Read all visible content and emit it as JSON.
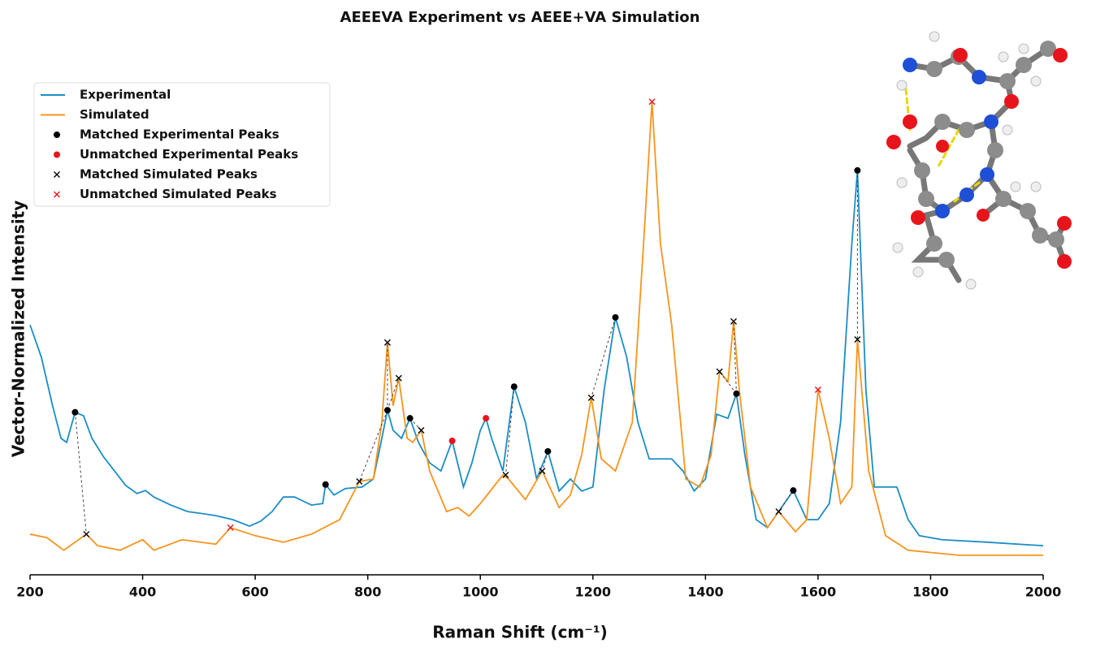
{
  "chart_data": {
    "type": "line",
    "title": "AEEEVA Experiment vs AEEE+VA Simulation",
    "xlabel": "Raman Shift (cm⁻¹)",
    "ylabel": "Vector-Normalized Intensity",
    "xlim": [
      200,
      2000
    ],
    "xticks": [
      200,
      400,
      600,
      800,
      1000,
      1200,
      1400,
      1600,
      1800,
      2000
    ],
    "ylim": [
      0,
      1
    ],
    "legend": "upper left",
    "grid": false,
    "series": [
      {
        "name": "Experimental",
        "color": "#1b8dc6",
        "marker": "line",
        "x": [
          200,
          220,
          240,
          255,
          265,
          280,
          295,
          310,
          330,
          350,
          370,
          390,
          405,
          420,
          450,
          480,
          500,
          530,
          560,
          590,
          610,
          630,
          650,
          670,
          700,
          720,
          725,
          740,
          760,
          790,
          810,
          825,
          835,
          845,
          860,
          875,
          890,
          910,
          930,
          950,
          970,
          985,
          1000,
          1010,
          1020,
          1040,
          1060,
          1080,
          1100,
          1120,
          1140,
          1160,
          1180,
          1200,
          1220,
          1240,
          1260,
          1280,
          1300,
          1340,
          1360,
          1380,
          1400,
          1420,
          1440,
          1455,
          1470,
          1490,
          1510,
          1530,
          1556,
          1580,
          1600,
          1620,
          1640,
          1660,
          1670,
          1685,
          1700,
          1740,
          1760,
          1780,
          1820,
          1900,
          2000
        ],
        "values": [
          0.498,
          0.434,
          0.337,
          0.272,
          0.264,
          0.324,
          0.317,
          0.272,
          0.236,
          0.207,
          0.178,
          0.162,
          0.168,
          0.155,
          0.139,
          0.126,
          0.123,
          0.118,
          0.11,
          0.097,
          0.107,
          0.126,
          0.155,
          0.155,
          0.139,
          0.142,
          0.18,
          0.159,
          0.172,
          0.175,
          0.191,
          0.272,
          0.328,
          0.288,
          0.272,
          0.312,
          0.264,
          0.223,
          0.207,
          0.267,
          0.175,
          0.223,
          0.288,
          0.312,
          0.272,
          0.207,
          0.375,
          0.304,
          0.191,
          0.246,
          0.167,
          0.191,
          0.167,
          0.175,
          0.369,
          0.513,
          0.434,
          0.304,
          0.231,
          0.231,
          0.207,
          0.167,
          0.191,
          0.32,
          0.312,
          0.361,
          0.239,
          0.11,
          0.094,
          0.126,
          0.168,
          0.11,
          0.11,
          0.142,
          0.304,
          0.66,
          0.806,
          0.369,
          0.175,
          0.175,
          0.11,
          0.078,
          0.07,
          0.065,
          0.058
        ]
      },
      {
        "name": "Simulated",
        "color": "#f7941d",
        "marker": "line",
        "x": [
          200,
          230,
          260,
          300,
          320,
          360,
          400,
          420,
          470,
          530,
          556,
          600,
          650,
          700,
          750,
          785,
          810,
          825,
          835,
          845,
          855,
          870,
          880,
          895,
          910,
          940,
          960,
          980,
          1000,
          1040,
          1050,
          1080,
          1110,
          1140,
          1160,
          1180,
          1197,
          1215,
          1240,
          1270,
          1290,
          1305,
          1320,
          1340,
          1365,
          1390,
          1410,
          1425,
          1440,
          1450,
          1460,
          1480,
          1510,
          1530,
          1560,
          1580,
          1600,
          1620,
          1640,
          1660,
          1670,
          1690,
          1720,
          1760,
          1850,
          2000
        ],
        "values": [
          0.081,
          0.074,
          0.049,
          0.081,
          0.058,
          0.049,
          0.07,
          0.049,
          0.07,
          0.061,
          0.094,
          0.078,
          0.065,
          0.081,
          0.11,
          0.186,
          0.191,
          0.304,
          0.463,
          0.337,
          0.392,
          0.272,
          0.264,
          0.288,
          0.207,
          0.126,
          0.134,
          0.117,
          0.142,
          0.199,
          0.191,
          0.15,
          0.207,
          0.134,
          0.159,
          0.239,
          0.353,
          0.231,
          0.207,
          0.304,
          0.66,
          0.943,
          0.66,
          0.498,
          0.191,
          0.175,
          0.239,
          0.405,
          0.385,
          0.505,
          0.369,
          0.175,
          0.094,
          0.126,
          0.086,
          0.11,
          0.369,
          0.272,
          0.142,
          0.175,
          0.469,
          0.207,
          0.078,
          0.049,
          0.039,
          0.039
        ]
      },
      {
        "name": "Matched Experimental Peaks",
        "color": "#000000",
        "marker": "o",
        "x": [
          280,
          725,
          835,
          875,
          1060,
          1120,
          1240,
          1455,
          1556,
          1670
        ],
        "values": [
          0.324,
          0.18,
          0.328,
          0.312,
          0.375,
          0.246,
          0.513,
          0.361,
          0.168,
          0.806
        ]
      },
      {
        "name": "Unmatched Experimental Peaks",
        "color": "#e8141b",
        "marker": "o",
        "x": [
          950,
          1010
        ],
        "values": [
          0.267,
          0.312
        ]
      },
      {
        "name": "Matched Simulated Peaks",
        "color": "#000000",
        "marker": "x",
        "x": [
          300,
          785,
          835,
          855,
          895,
          1045,
          1110,
          1197,
          1425,
          1450,
          1530,
          1670
        ],
        "values": [
          0.081,
          0.186,
          0.463,
          0.392,
          0.288,
          0.199,
          0.207,
          0.353,
          0.405,
          0.505,
          0.126,
          0.469
        ]
      },
      {
        "name": "Unmatched Simulated Peaks",
        "color": "#e8141b",
        "marker": "x",
        "x": [
          556,
          1305,
          1600
        ],
        "values": [
          0.094,
          0.943,
          0.369
        ]
      }
    ]
  }
}
